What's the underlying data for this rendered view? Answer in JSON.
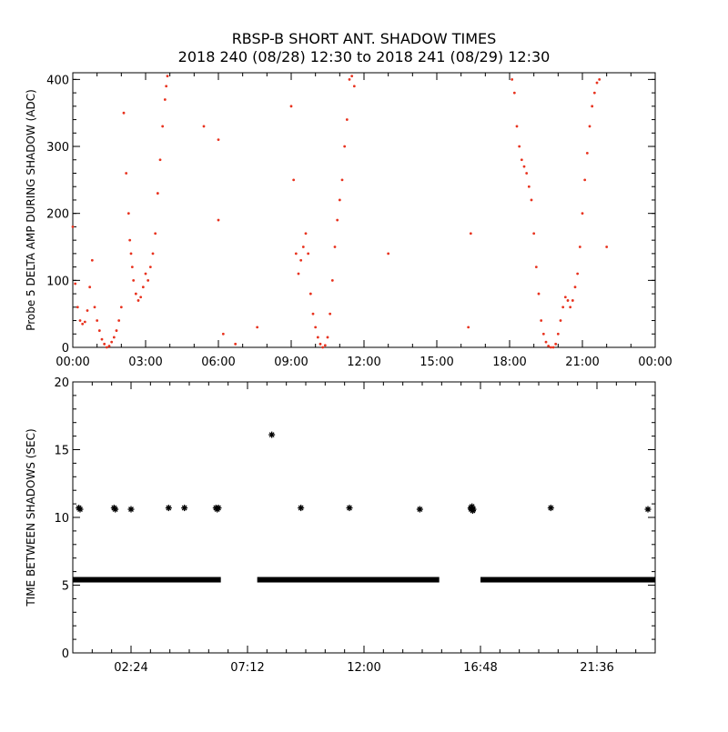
{
  "title_line1": "RBSP-B SHORT ANT. SHADOW TIMES",
  "title_line2": "2018 240 (08/28) 12:30 to 2018 241 (08/29) 12:30",
  "colors": {
    "top_points": "#e8321e",
    "bottom_points": "#000000",
    "axes": "#000000"
  },
  "chart_data": [
    {
      "type": "scatter",
      "ylabel": "Probe 5 DELTA AMP DURING SHADOW (ADC)",
      "xlim": [
        0,
        24
      ],
      "ylim": [
        0,
        410
      ],
      "x_ticks": [
        0,
        3,
        6,
        9,
        12,
        15,
        18,
        21,
        24
      ],
      "x_tick_labels": [
        "00:00",
        "03:00",
        "06:00",
        "09:00",
        "12:00",
        "15:00",
        "18:00",
        "21:00",
        "00:00"
      ],
      "y_ticks": [
        0,
        100,
        200,
        300,
        400
      ],
      "y_tick_labels": [
        "0",
        "100",
        "200",
        "300",
        "400"
      ],
      "marker": "dot",
      "series": [
        {
          "x": [
            0.0,
            0.1,
            0.2,
            0.3,
            0.4,
            0.5,
            0.6,
            0.7,
            0.8,
            0.9,
            1.0,
            1.1,
            1.2,
            1.3,
            1.4,
            1.5,
            1.6,
            1.7,
            1.8,
            1.9,
            2.0,
            2.1,
            2.2,
            2.3,
            2.35,
            2.4,
            2.45,
            2.5,
            2.6,
            2.7,
            2.8,
            2.9,
            3.0,
            3.1,
            3.2,
            3.3,
            3.4,
            3.5,
            3.6,
            3.7,
            3.8,
            3.85,
            3.9,
            5.4,
            6.0,
            6.0,
            6.2,
            6.7,
            7.6,
            9.0,
            9.1,
            9.2,
            9.3,
            9.4,
            9.5,
            9.6,
            9.7,
            9.8,
            9.9,
            10.0,
            10.1,
            10.2,
            10.3,
            10.4,
            10.5,
            10.6,
            10.7,
            10.8,
            10.9,
            11.0,
            11.1,
            11.2,
            11.3,
            11.4,
            11.5,
            11.6,
            13.0,
            16.3,
            16.4,
            18.1,
            18.2,
            18.3,
            18.4,
            18.5,
            18.6,
            18.7,
            18.8,
            18.9,
            19.0,
            19.1,
            19.2,
            19.3,
            19.4,
            19.5,
            19.6,
            19.7,
            19.8,
            19.9,
            20.0,
            20.1,
            20.2,
            20.3,
            20.4,
            20.5,
            20.6,
            20.7,
            20.8,
            20.9,
            21.0,
            21.1,
            21.2,
            21.3,
            21.4,
            21.5,
            21.6,
            21.7,
            22.0
          ],
          "y": [
            180,
            95,
            60,
            40,
            35,
            38,
            55,
            90,
            130,
            60,
            40,
            25,
            12,
            5,
            0,
            2,
            8,
            15,
            25,
            40,
            60,
            350,
            260,
            200,
            160,
            140,
            120,
            100,
            80,
            70,
            75,
            90,
            110,
            100,
            120,
            140,
            170,
            230,
            280,
            330,
            370,
            390,
            405,
            330,
            310,
            190,
            20,
            5,
            30,
            360,
            250,
            140,
            110,
            130,
            150,
            170,
            140,
            80,
            50,
            30,
            15,
            5,
            0,
            3,
            15,
            50,
            100,
            150,
            190,
            220,
            250,
            300,
            340,
            400,
            405,
            390,
            140,
            30,
            170,
            400,
            380,
            330,
            300,
            280,
            270,
            260,
            240,
            220,
            170,
            120,
            80,
            40,
            20,
            8,
            2,
            0,
            0,
            5,
            20,
            40,
            60,
            75,
            70,
            60,
            70,
            90,
            110,
            150,
            200,
            250,
            290,
            330,
            360,
            380,
            395,
            400,
            150
          ]
        }
      ]
    },
    {
      "type": "scatter",
      "ylabel": "TIME BETWEEN SHADOWS (SEC)",
      "xlim": [
        0,
        24
      ],
      "ylim": [
        0,
        20
      ],
      "x_ticks": [
        2.4,
        7.2,
        12.0,
        16.8,
        21.6
      ],
      "x_tick_labels": [
        "02:24",
        "07:12",
        "12:00",
        "16:48",
        "21:36"
      ],
      "y_ticks": [
        0,
        5,
        10,
        15,
        20
      ],
      "y_tick_labels": [
        "0",
        "5",
        "10",
        "15",
        "20"
      ],
      "marker": "asterisk",
      "series": [
        {
          "baseline_value": 5.4,
          "baseline_ranges": [
            [
              0.0,
              6.1
            ],
            [
              7.6,
              15.1
            ],
            [
              16.8,
              24.0
            ]
          ],
          "x": [
            0.25,
            0.3,
            1.7,
            1.75,
            2.4,
            3.95,
            4.6,
            5.9,
            5.95,
            6.0,
            8.2,
            9.4,
            11.4,
            14.3,
            16.4,
            16.42,
            16.45,
            16.48,
            16.5,
            19.7,
            23.7
          ],
          "y": [
            10.7,
            10.6,
            10.7,
            10.6,
            10.6,
            10.7,
            10.7,
            10.7,
            10.6,
            10.7,
            16.1,
            10.7,
            10.7,
            10.6,
            10.7,
            10.6,
            10.8,
            10.5,
            10.6,
            10.7,
            10.6
          ]
        }
      ]
    }
  ]
}
